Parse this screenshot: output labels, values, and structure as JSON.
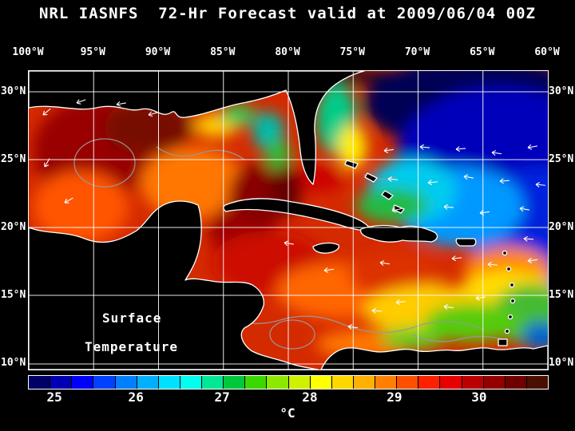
{
  "title": "NRL IASNFS  72-Hr Forecast valid at 2009/06/04 00Z",
  "map": {
    "lon_labels": [
      "100°W",
      "95°W",
      "90°W",
      "85°W",
      "80°W",
      "75°W",
      "70°W",
      "65°W",
      "60°W"
    ],
    "lat_labels": [
      "30°N",
      "25°N",
      "20°N",
      "15°N",
      "10°N"
    ],
    "overlay_line1": "Surface",
    "overlay_line2": "Temperature"
  },
  "colorbar": {
    "unit_label": "°C",
    "colors": [
      "#000066",
      "#0000b3",
      "#0000ff",
      "#0040ff",
      "#0080ff",
      "#00b0ff",
      "#00e0ff",
      "#00ffee",
      "#00e896",
      "#00c83c",
      "#3cd800",
      "#8ce800",
      "#d0f000",
      "#ffff00",
      "#ffd800",
      "#ffb000",
      "#ff8000",
      "#ff5000",
      "#ff2000",
      "#e60000",
      "#bc0000",
      "#940000",
      "#6e0000",
      "#4b0f00"
    ],
    "ticks": [
      {
        "label": "25",
        "pos": 0.051
      },
      {
        "label": "26",
        "pos": 0.208
      },
      {
        "label": "27",
        "pos": 0.374
      },
      {
        "label": "28",
        "pos": 0.543
      },
      {
        "label": "29",
        "pos": 0.706
      },
      {
        "label": "30",
        "pos": 0.869
      }
    ]
  },
  "colors": {
    "background": "#000000",
    "text": "#ffffff",
    "grid": "#ffffff",
    "coastline": "#ffffff",
    "land": "#000000",
    "contour": "#999999"
  },
  "chart_data": {
    "type": "heatmap",
    "title": "NRL IASNFS 72-Hr Forecast valid at 2009/06/04 00Z",
    "variable": "Surface Temperature",
    "unit": "°C",
    "colorbar_ticks": [
      25,
      26,
      27,
      28,
      29,
      30
    ],
    "lon_ticks_deg_w": [
      100,
      95,
      90,
      85,
      80,
      75,
      70,
      65,
      60
    ],
    "lat_ticks_deg_n": [
      30,
      25,
      20,
      15,
      10
    ],
    "legend_position": "bottom"
  }
}
